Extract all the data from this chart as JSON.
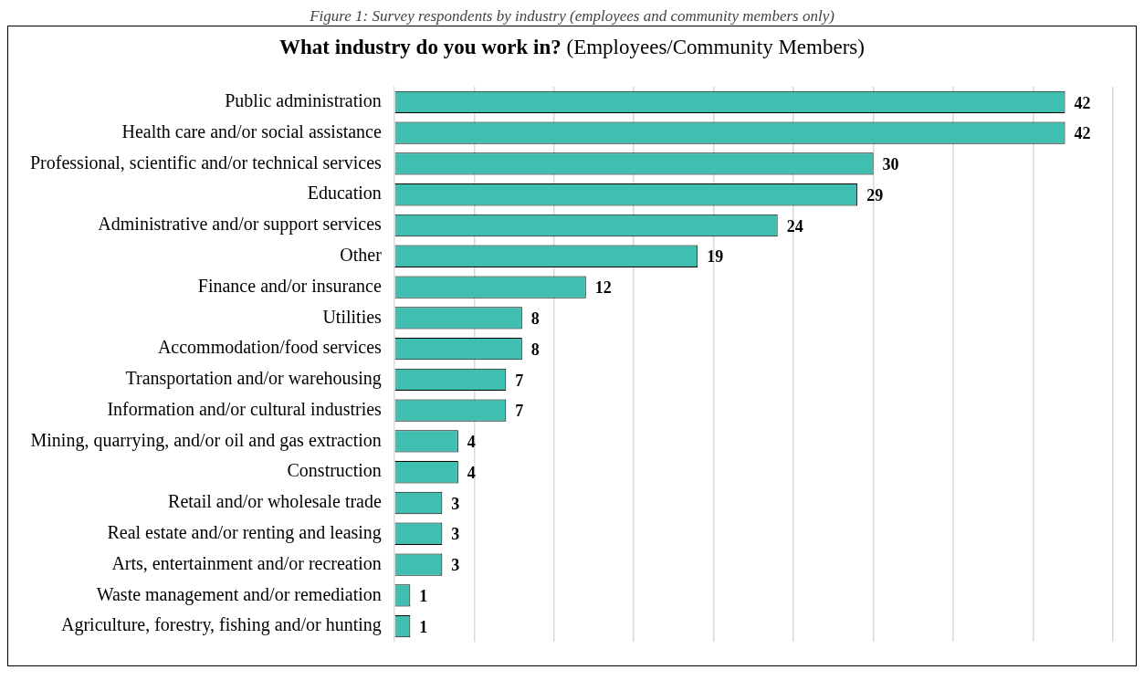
{
  "chart_data": {
    "type": "bar",
    "orientation": "horizontal",
    "title": "What industry do you work in?",
    "subtitle": "(Employees/Community Members)",
    "annotations": [
      "Figure 1: Survey respondents by industry (employees and community members only)"
    ],
    "categories": [
      "Public administration",
      "Health care and/or social assistance",
      "Professional, scientific and/or technical services",
      "Education",
      "Administrative and/or support services",
      "Other",
      "Finance and/or insurance",
      "Utilities",
      "Accommodation/food services",
      "Transportation and/or warehousing",
      "Information and/or cultural industries",
      "Mining, quarrying, and/or oil and gas extraction",
      "Construction",
      "Retail and/or wholesale trade",
      "Real estate and/or renting and leasing",
      "Arts, entertainment and/or recreation",
      "Waste management and/or remediation",
      "Agriculture, forestry, fishing and/or hunting"
    ],
    "values": [
      42,
      42,
      30,
      29,
      24,
      19,
      12,
      8,
      8,
      7,
      7,
      4,
      4,
      3,
      3,
      3,
      1,
      1
    ],
    "color": "#40bfb0",
    "grid": "x",
    "data_labels": true,
    "tick_labels": "y",
    "legend": false
  }
}
